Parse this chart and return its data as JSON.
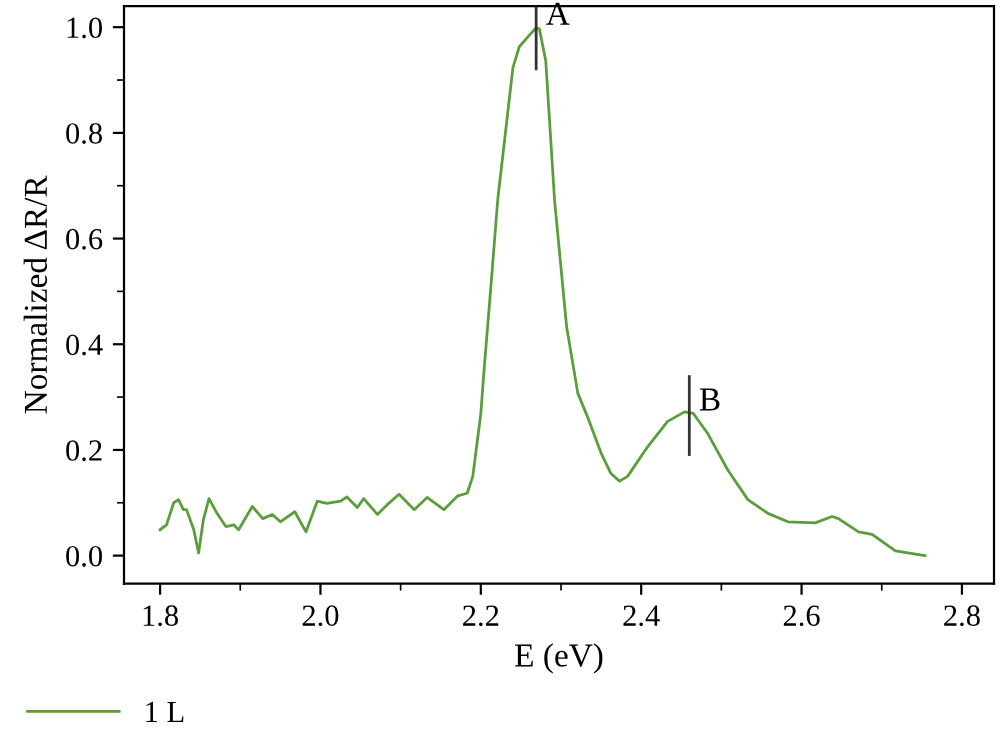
{
  "chart_data": {
    "type": "line",
    "xlabel": "E (eV)",
    "ylabel": "Normalized ΔR/R",
    "xlim": [
      1.755,
      2.84
    ],
    "ylim": [
      -0.053,
      1.04
    ],
    "xticks": [
      {
        "value": 1.8,
        "label": "1.8"
      },
      {
        "value": 2.0,
        "label": "2.0"
      },
      {
        "value": 2.2,
        "label": "2.2"
      },
      {
        "value": 2.4,
        "label": "2.4"
      },
      {
        "value": 2.6,
        "label": "2.6"
      },
      {
        "value": 2.8,
        "label": "2.8"
      }
    ],
    "yticks": [
      {
        "value": 0,
        "label": "0.0"
      },
      {
        "value": 0.2,
        "label": "0.2"
      },
      {
        "value": 0.4,
        "label": "0.4"
      },
      {
        "value": 0.6,
        "label": "0.6"
      },
      {
        "value": 0.8,
        "label": "0.8"
      },
      {
        "value": 1.0,
        "label": "1.0"
      }
    ],
    "grid": false,
    "legend": "bottom left",
    "marker": "none",
    "line_style": "solid",
    "annotations": [
      {
        "text": "A",
        "x": 2.269,
        "y": 1.0
      },
      {
        "text": "B",
        "x": 2.46,
        "y": 0.27
      }
    ],
    "series": [
      {
        "name": "1 L",
        "color": "#5a9e3a",
        "x": [
          1.8,
          1.808,
          1.817,
          1.823,
          1.829,
          1.833,
          1.842,
          1.848,
          1.854,
          1.861,
          1.871,
          1.882,
          1.892,
          1.898,
          1.915,
          1.928,
          1.94,
          1.95,
          1.968,
          1.982,
          1.996,
          2.008,
          2.025,
          2.033,
          2.046,
          2.054,
          2.071,
          2.083,
          2.098,
          2.117,
          2.133,
          2.154,
          2.171,
          2.183,
          2.19,
          2.2,
          2.204,
          2.2125,
          2.221,
          2.229,
          2.24,
          2.248,
          2.26,
          2.269,
          2.273,
          2.281,
          2.292,
          2.307,
          2.321,
          2.333,
          2.35,
          2.362,
          2.373,
          2.383,
          2.408,
          2.433,
          2.454,
          2.465,
          2.483,
          2.508,
          2.533,
          2.558,
          2.583,
          2.617,
          2.638,
          2.646,
          2.671,
          2.688,
          2.717,
          2.754
        ],
        "values": [
          0.049,
          0.058,
          0.1,
          0.106,
          0.087,
          0.087,
          0.049,
          0.005,
          0.068,
          0.108,
          0.08,
          0.055,
          0.058,
          0.049,
          0.093,
          0.07,
          0.078,
          0.064,
          0.083,
          0.045,
          0.103,
          0.099,
          0.103,
          0.111,
          0.091,
          0.108,
          0.078,
          0.096,
          0.116,
          0.087,
          0.11,
          0.087,
          0.113,
          0.118,
          0.15,
          0.269,
          0.35,
          0.508,
          0.672,
          0.778,
          0.923,
          0.963,
          0.984,
          0.999,
          0.997,
          0.936,
          0.672,
          0.433,
          0.307,
          0.263,
          0.194,
          0.156,
          0.141,
          0.15,
          0.206,
          0.254,
          0.272,
          0.269,
          0.231,
          0.162,
          0.106,
          0.08,
          0.064,
          0.062,
          0.074,
          0.07,
          0.045,
          0.04,
          0.009,
          0.0
        ]
      }
    ]
  }
}
